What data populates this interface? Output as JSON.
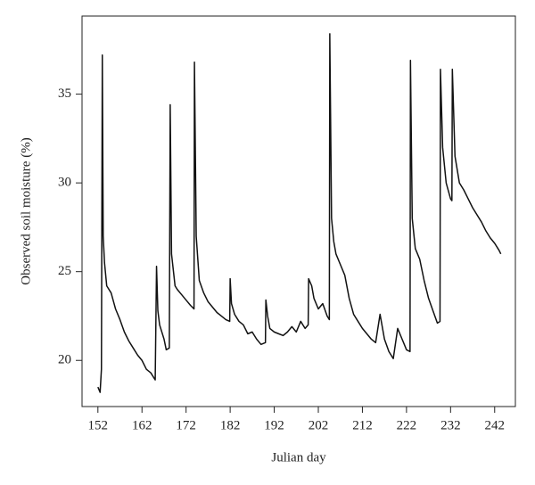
{
  "chart_data": {
    "type": "line",
    "x_label": "Julian day",
    "y_label": "Observed soil moisture (%)",
    "color": "#111111",
    "xlim": [
      148.4,
      246.7
    ],
    "ylim": [
      17.4,
      39.4
    ],
    "xticks": [
      152,
      162,
      172,
      182,
      192,
      202,
      212,
      222,
      232,
      242
    ],
    "yticks": [
      20,
      25,
      30,
      35
    ],
    "x": [
      152,
      152.5,
      152.8,
      153,
      153.2,
      153.5,
      154,
      155,
      156,
      157,
      158,
      159,
      160,
      161,
      162,
      163,
      164,
      165,
      165.3,
      165.6,
      166,
      167,
      167.5,
      168.2,
      168.4,
      168.7,
      169.5,
      170,
      171,
      172,
      173,
      173.8,
      173.9,
      174.3,
      175,
      176,
      177,
      178,
      179,
      180,
      181,
      181.9,
      182,
      182.3,
      183,
      184,
      185,
      186,
      187,
      188,
      189,
      190,
      190.1,
      190.5,
      191,
      192,
      193,
      194,
      195,
      196,
      197,
      198,
      199,
      199.7,
      199.8,
      200.5,
      201,
      202,
      203,
      204,
      204.5,
      204.6,
      205,
      205.5,
      206,
      207,
      208,
      209,
      210,
      211,
      212,
      213,
      214,
      215,
      216,
      217,
      218,
      219,
      220,
      221,
      222,
      222.8,
      222.9,
      223.3,
      224,
      225,
      226,
      227,
      228,
      229,
      229.6,
      229.7,
      230.2,
      231,
      232,
      232.3,
      232.4,
      233,
      234,
      235,
      236,
      237,
      238,
      239,
      240,
      241,
      242,
      243,
      243.4
    ],
    "values": [
      18.5,
      18.2,
      19.5,
      37.2,
      27,
      25.5,
      24.2,
      23.8,
      22.9,
      22.3,
      21.6,
      21.1,
      20.7,
      20.3,
      20,
      19.5,
      19.3,
      18.9,
      25.3,
      22.8,
      22,
      21.2,
      20.6,
      20.7,
      34.4,
      26,
      24.2,
      24,
      23.7,
      23.4,
      23.1,
      22.9,
      36.8,
      27,
      24.5,
      23.8,
      23.3,
      23,
      22.7,
      22.5,
      22.3,
      22.2,
      24.6,
      23.2,
      22.6,
      22.2,
      22,
      21.5,
      21.6,
      21.2,
      20.9,
      21,
      23.4,
      22.5,
      21.8,
      21.6,
      21.5,
      21.4,
      21.6,
      21.9,
      21.6,
      22.2,
      21.8,
      22,
      24.6,
      24.2,
      23.5,
      22.9,
      23.2,
      22.5,
      22.3,
      38.4,
      28,
      26.7,
      26,
      25.4,
      24.8,
      23.5,
      22.6,
      22.2,
      21.8,
      21.5,
      21.2,
      21,
      22.6,
      21.2,
      20.5,
      20.1,
      21.8,
      21.2,
      20.6,
      20.5,
      36.9,
      28,
      26.3,
      25.7,
      24.5,
      23.5,
      22.8,
      22.1,
      22.2,
      36.4,
      32,
      30,
      29.1,
      29,
      36.4,
      31.5,
      30,
      29.6,
      29.1,
      28.6,
      28.2,
      27.8,
      27.3,
      26.9,
      26.6,
      26.2,
      26
    ]
  }
}
